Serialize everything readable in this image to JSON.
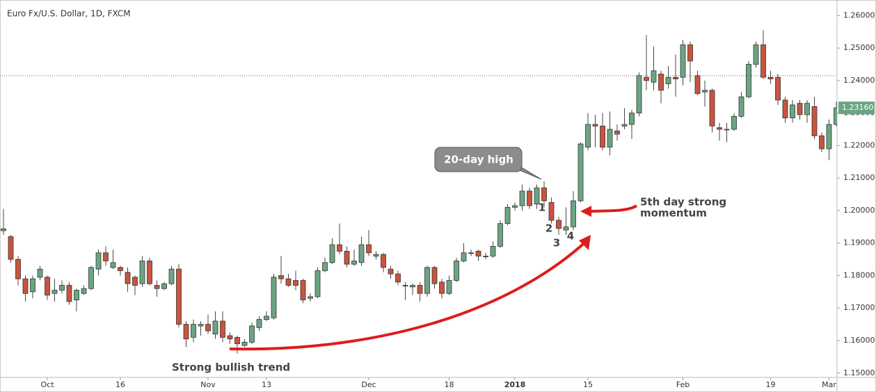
{
  "chart_data": {
    "type": "candlestick",
    "title": "Euro Fx/U.S. Dollar, 1D, FXCM",
    "categories": [
      null,
      null,
      null,
      null,
      null,
      null,
      "Oct",
      null,
      null,
      null,
      null,
      null,
      null,
      null,
      null,
      null,
      "16",
      null,
      null,
      null,
      null,
      null,
      null,
      null,
      null,
      null,
      null,
      null,
      "Nov",
      null,
      null,
      null,
      null,
      null,
      null,
      null,
      "13",
      null,
      null,
      null,
      null,
      null,
      null,
      null,
      null,
      null,
      null,
      null,
      null,
      null,
      "Dec",
      null,
      null,
      null,
      null,
      null,
      null,
      null,
      null,
      null,
      null,
      "18",
      null,
      null,
      null,
      null,
      null,
      null,
      null,
      null,
      "2018",
      null,
      null,
      null,
      null,
      null,
      null,
      null,
      null,
      null,
      "15",
      null,
      null,
      null,
      null,
      null,
      null,
      null,
      null,
      null,
      null,
      null,
      null,
      "Feb",
      null,
      null,
      null,
      null,
      null,
      null,
      null,
      null,
      null,
      null,
      null,
      "19",
      null,
      null,
      null,
      null,
      null,
      null,
      null,
      "Mar",
      null
    ],
    "open": [
      1.1938,
      1.192,
      1.185,
      1.179,
      1.175,
      1.1795,
      1.1795,
      1.1745,
      1.1755,
      1.177,
      1.1725,
      1.1745,
      1.176,
      1.182,
      1.187,
      1.1825,
      1.1825,
      1.181,
      1.1795,
      1.1775,
      1.1845,
      1.177,
      1.176,
      1.1775,
      1.182,
      1.165,
      1.161,
      1.1645,
      1.165,
      1.162,
      1.166,
      1.1615,
      1.161,
      1.1585,
      1.1595,
      1.164,
      1.1665,
      1.167,
      1.18,
      1.179,
      1.1785,
      1.1785,
      1.173,
      1.1735,
      1.1815,
      1.184,
      1.1895,
      1.1875,
      1.1835,
      1.184,
      1.1895,
      1.186,
      1.1865,
      1.182,
      1.1805,
      1.177,
      1.1765,
      1.177,
      1.1745,
      1.1825,
      1.178,
      1.1745,
      1.1785,
      1.1845,
      1.187,
      1.1875,
      1.186,
      1.186,
      1.189,
      1.196,
      1.201,
      1.2015,
      1.206,
      1.202,
      1.207,
      1.2025,
      1.197,
      1.194,
      1.195,
      1.203,
      1.2195,
      1.2265,
      1.226,
      1.2195,
      1.2245,
      1.226,
      1.2265,
      1.23,
      1.241,
      1.2395,
      1.242,
      1.239,
      1.241,
      1.241,
      1.251,
      1.2415,
      1.2365,
      1.237,
      1.2255,
      1.225,
      1.225,
      1.229,
      1.235,
      1.245,
      1.251,
      1.241,
      1.241,
      1.234,
      1.2285,
      1.233,
      1.2295,
      1.232,
      1.223,
      1.219,
      1.2265
    ],
    "high": [
      1.2005,
      1.1925,
      1.186,
      1.18,
      1.18,
      1.183,
      1.18,
      1.179,
      1.1785,
      1.178,
      1.176,
      1.177,
      1.183,
      1.188,
      1.189,
      1.188,
      1.183,
      1.1825,
      1.18,
      1.186,
      1.1855,
      1.1785,
      1.178,
      1.183,
      1.1835,
      1.166,
      1.1665,
      1.166,
      1.168,
      1.169,
      1.169,
      1.1625,
      1.1615,
      1.1605,
      1.1655,
      1.1675,
      1.169,
      1.1805,
      1.186,
      1.1805,
      1.1815,
      1.179,
      1.1745,
      1.1825,
      1.1855,
      1.1915,
      1.196,
      1.189,
      1.188,
      1.192,
      1.194,
      1.1875,
      1.187,
      1.183,
      1.1815,
      1.178,
      1.1775,
      1.178,
      1.183,
      1.183,
      1.179,
      1.18,
      1.1855,
      1.19,
      1.188,
      1.188,
      1.187,
      1.1905,
      1.197,
      1.202,
      1.2025,
      1.208,
      1.207,
      1.208,
      1.209,
      1.204,
      1.198,
      1.201,
      1.206,
      1.221,
      1.23,
      1.2295,
      1.23,
      1.2305,
      1.2265,
      1.2315,
      1.231,
      1.2425,
      1.254,
      1.2505,
      1.243,
      1.2445,
      1.248,
      1.2525,
      1.252,
      1.243,
      1.24,
      1.2375,
      1.227,
      1.227,
      1.23,
      1.2365,
      1.246,
      1.252,
      1.2555,
      1.243,
      1.242,
      1.235,
      1.234,
      1.234,
      1.234,
      1.235,
      1.224,
      1.228,
      1.2335
    ],
    "low": [
      1.1925,
      1.184,
      1.177,
      1.172,
      1.173,
      1.1785,
      1.1725,
      1.172,
      1.1745,
      1.171,
      1.169,
      1.174,
      1.1755,
      1.18,
      1.183,
      1.182,
      1.18,
      1.175,
      1.174,
      1.1765,
      1.177,
      1.1735,
      1.1755,
      1.177,
      1.164,
      1.158,
      1.1595,
      1.1615,
      1.162,
      1.1605,
      1.1595,
      1.159,
      1.156,
      1.158,
      1.159,
      1.163,
      1.166,
      1.1665,
      1.1775,
      1.1765,
      1.1755,
      1.1715,
      1.172,
      1.173,
      1.181,
      1.1835,
      1.1865,
      1.1825,
      1.183,
      1.183,
      1.186,
      1.185,
      1.181,
      1.179,
      1.177,
      1.1725,
      1.174,
      1.172,
      1.1735,
      1.176,
      1.173,
      1.174,
      1.178,
      1.184,
      1.186,
      1.1845,
      1.185,
      1.1855,
      1.1885,
      1.1955,
      1.2,
      1.2,
      1.2005,
      1.2005,
      1.201,
      1.196,
      1.1925,
      1.1925,
      1.194,
      1.2025,
      1.2185,
      1.2195,
      1.2185,
      1.217,
      1.2215,
      1.225,
      1.222,
      1.229,
      1.237,
      1.237,
      1.233,
      1.2375,
      1.235,
      1.2385,
      1.2395,
      1.2355,
      1.232,
      1.224,
      1.2215,
      1.221,
      1.2245,
      1.2285,
      1.2345,
      1.244,
      1.2405,
      1.239,
      1.2325,
      1.227,
      1.227,
      1.228,
      1.227,
      1.222,
      1.218,
      1.2155,
      1.226
    ],
    "close": [
      1.1944,
      1.185,
      1.179,
      1.1745,
      1.179,
      1.182,
      1.174,
      1.1755,
      1.177,
      1.172,
      1.1755,
      1.176,
      1.1825,
      1.187,
      1.1845,
      1.184,
      1.1815,
      1.1775,
      1.177,
      1.1845,
      1.1775,
      1.176,
      1.1775,
      1.182,
      1.165,
      1.1605,
      1.165,
      1.165,
      1.163,
      1.166,
      1.161,
      1.1605,
      1.159,
      1.1595,
      1.1645,
      1.1665,
      1.1675,
      1.1795,
      1.179,
      1.177,
      1.177,
      1.1725,
      1.1735,
      1.1815,
      1.184,
      1.1895,
      1.1875,
      1.1835,
      1.1845,
      1.1895,
      1.187,
      1.1865,
      1.1825,
      1.1805,
      1.178,
      1.177,
      1.177,
      1.1745,
      1.1825,
      1.1775,
      1.1745,
      1.1785,
      1.1845,
      1.187,
      1.187,
      1.186,
      1.186,
      1.189,
      1.196,
      1.201,
      1.2015,
      1.206,
      1.2015,
      1.207,
      1.203,
      1.197,
      1.1945,
      1.195,
      1.203,
      1.2205,
      1.2265,
      1.226,
      1.2195,
      1.225,
      1.2235,
      1.2265,
      1.23,
      1.2415,
      1.24,
      1.243,
      1.237,
      1.241,
      1.2405,
      1.251,
      1.246,
      1.236,
      1.237,
      1.226,
      1.225,
      1.225,
      1.229,
      1.235,
      1.245,
      1.251,
      1.241,
      1.2405,
      1.234,
      1.2285,
      1.2325,
      1.2295,
      1.233,
      1.223,
      1.219,
      1.2265,
      1.2316
    ],
    "up_color": "#6ba583",
    "down_color": "#c9543d",
    "ylim": [
      1.14867,
      1.26478
    ],
    "yticks": [
      {
        "value": 1.15,
        "label": "1.15000"
      },
      {
        "value": 1.16,
        "label": "1.16000"
      },
      {
        "value": 1.17,
        "label": "1.17000"
      },
      {
        "value": 1.18,
        "label": "1.18000"
      },
      {
        "value": 1.19,
        "label": "1.19000"
      },
      {
        "value": 1.2,
        "label": "1.20000"
      },
      {
        "value": 1.21,
        "label": "1.21000"
      },
      {
        "value": 1.22,
        "label": "1.22000"
      },
      {
        "value": 1.23,
        "label": "1.23000"
      },
      {
        "value": 1.24,
        "label": "1.24000"
      },
      {
        "value": 1.25,
        "label": "1.25000"
      },
      {
        "value": 1.26,
        "label": "1.26000"
      }
    ],
    "last_price": {
      "value": 1.2316,
      "label": "1.23160"
    },
    "ref_line": 1.2415,
    "annotations": {
      "high_label": "20-day high",
      "momentum_lines": [
        "5th day strong",
        "momentum"
      ],
      "trend_label": "Strong bullish trend",
      "day_numbers": [
        "1",
        "2",
        "3",
        "4"
      ]
    }
  }
}
